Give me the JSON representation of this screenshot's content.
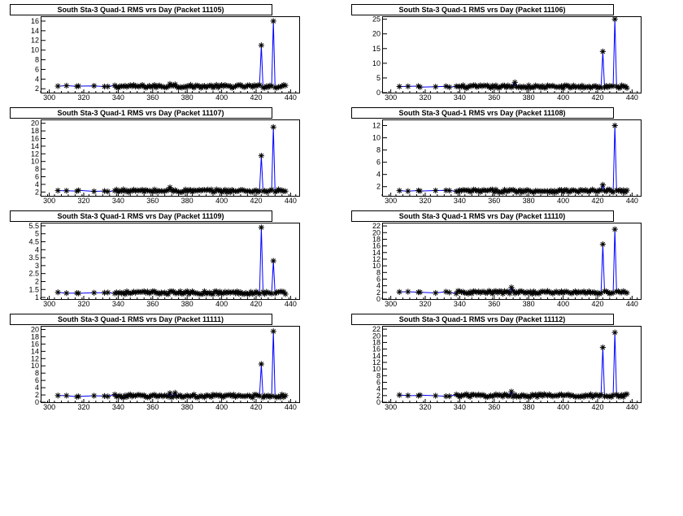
{
  "page": {
    "background": "#ffffff",
    "line_color": "#0000ff",
    "marker_color": "#000000",
    "marker": "asterisk"
  },
  "chart_data": [
    {
      "type": "line",
      "title": "South Sta-3 Quad-1 RMS vrs Day (Packet 11105)",
      "xlim": [
        295,
        445
      ],
      "ylim": [
        1.2,
        17
      ],
      "xticks": [
        300,
        320,
        340,
        360,
        380,
        400,
        420,
        440
      ],
      "yticks": [
        2,
        4,
        6,
        8,
        10,
        12,
        14,
        16
      ],
      "baseline": 2.5,
      "spikes": [
        [
          423,
          11
        ],
        [
          430,
          16
        ]
      ],
      "highlights": [
        [
          370,
          3.0
        ],
        [
          373,
          2.9
        ]
      ],
      "grid": false
    },
    {
      "type": "line",
      "title": "South Sta-3 Quad-1 RMS vrs Day (Packet 11106)",
      "xlim": [
        295,
        445
      ],
      "ylim": [
        0,
        26
      ],
      "xticks": [
        300,
        320,
        340,
        360,
        380,
        400,
        420,
        440
      ],
      "yticks": [
        0,
        5,
        10,
        15,
        20,
        25
      ],
      "baseline": 2,
      "spikes": [
        [
          423,
          14
        ],
        [
          430,
          25
        ]
      ],
      "highlights": [
        [
          372,
          3.5
        ]
      ],
      "grid": false
    },
    {
      "type": "line",
      "title": "South Sta-3 Quad-1 RMS vrs Day (Packet 11107)",
      "xlim": [
        295,
        445
      ],
      "ylim": [
        1,
        21
      ],
      "xticks": [
        300,
        320,
        340,
        360,
        380,
        400,
        420,
        440
      ],
      "yticks": [
        2,
        4,
        6,
        8,
        10,
        12,
        14,
        16,
        18,
        20
      ],
      "baseline": 2.3,
      "spikes": [
        [
          423,
          11.5
        ],
        [
          430,
          19
        ]
      ],
      "highlights": [
        [
          370,
          3.2
        ]
      ],
      "grid": false
    },
    {
      "type": "line",
      "title": "South Sta-3 Quad-1 RMS vrs Day (Packet 11108)",
      "xlim": [
        295,
        445
      ],
      "ylim": [
        0.5,
        13
      ],
      "xticks": [
        300,
        320,
        340,
        360,
        380,
        400,
        420,
        440
      ],
      "yticks": [
        2,
        4,
        6,
        8,
        10,
        12
      ],
      "baseline": 1.3,
      "spikes": [
        [
          423,
          2.3
        ],
        [
          430,
          12
        ]
      ],
      "highlights": [],
      "grid": false
    },
    {
      "type": "line",
      "title": "South Sta-3 Quad-1 RMS vrs Day (Packet 11109)",
      "xlim": [
        295,
        445
      ],
      "ylim": [
        0.9,
        5.7
      ],
      "xticks": [
        300,
        320,
        340,
        360,
        380,
        400,
        420,
        440
      ],
      "yticks": [
        1,
        1.5,
        2,
        2.5,
        3,
        3.5,
        4,
        4.5,
        5,
        5.5
      ],
      "baseline": 1.3,
      "spikes": [
        [
          423,
          5.4
        ],
        [
          430,
          3.3
        ]
      ],
      "highlights": [],
      "grid": false
    },
    {
      "type": "line",
      "title": "South Sta-3 Quad-1 RMS vrs Day (Packet 11110)",
      "xlim": [
        295,
        445
      ],
      "ylim": [
        0,
        23
      ],
      "xticks": [
        300,
        320,
        340,
        360,
        380,
        400,
        420,
        440
      ],
      "yticks": [
        0,
        2,
        4,
        6,
        8,
        10,
        12,
        14,
        16,
        18,
        20,
        22
      ],
      "baseline": 2,
      "spikes": [
        [
          423,
          16.5
        ],
        [
          430,
          21
        ]
      ],
      "highlights": [
        [
          370,
          3.5
        ]
      ],
      "grid": false
    },
    {
      "type": "line",
      "title": "South Sta-3 Quad-1 RMS vrs Day (Packet 11111)",
      "xlim": [
        295,
        445
      ],
      "ylim": [
        0,
        21
      ],
      "xticks": [
        300,
        320,
        340,
        360,
        380,
        400,
        420,
        440
      ],
      "yticks": [
        0,
        2,
        4,
        6,
        8,
        10,
        12,
        14,
        16,
        18,
        20
      ],
      "baseline": 1.7,
      "spikes": [
        [
          423,
          10.5
        ],
        [
          430,
          19.5
        ]
      ],
      "highlights": [
        [
          370,
          2.5
        ],
        [
          373,
          2.6
        ]
      ],
      "grid": false
    },
    {
      "type": "line",
      "title": "South Sta-3 Quad-1 RMS vrs Day (Packet 11112)",
      "xlim": [
        295,
        445
      ],
      "ylim": [
        0,
        23
      ],
      "xticks": [
        300,
        320,
        340,
        360,
        380,
        400,
        420,
        440
      ],
      "yticks": [
        0,
        2,
        4,
        6,
        8,
        10,
        12,
        14,
        16,
        18,
        20,
        22
      ],
      "baseline": 2,
      "spikes": [
        [
          423,
          16.5
        ],
        [
          430,
          21
        ]
      ],
      "highlights": [
        [
          370,
          3.2
        ]
      ],
      "grid": false
    }
  ]
}
